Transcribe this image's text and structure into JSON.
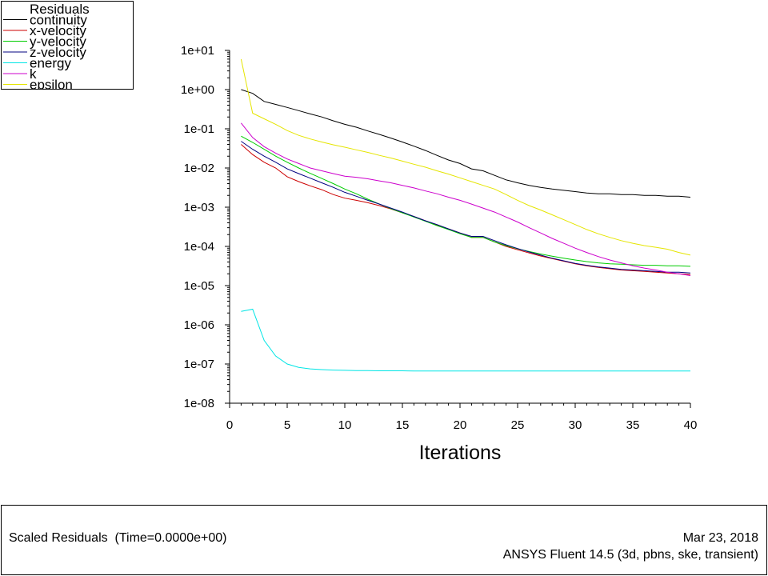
{
  "chart_data": {
    "type": "line",
    "title": "",
    "xlabel": "Iterations",
    "ylabel": "",
    "yscale": "log",
    "xlim": [
      0,
      40
    ],
    "ylim": [
      1e-08,
      10
    ],
    "x_ticks": [
      0,
      5,
      10,
      15,
      20,
      25,
      30,
      35,
      40
    ],
    "y_ticks": [
      "1e-08",
      "1e-07",
      "1e-06",
      "1e-05",
      "1e-04",
      "1e-03",
      "1e-02",
      "1e-01",
      "1e+00",
      "1e+01"
    ],
    "legend": {
      "title": "Residuals",
      "position": "top-left"
    },
    "x": [
      1,
      2,
      3,
      4,
      5,
      6,
      7,
      8,
      9,
      10,
      11,
      12,
      13,
      14,
      15,
      16,
      17,
      18,
      19,
      20,
      21,
      22,
      23,
      24,
      25,
      26,
      27,
      28,
      29,
      30,
      31,
      32,
      33,
      34,
      35,
      36,
      37,
      38,
      39,
      40
    ],
    "series": [
      {
        "name": "continuity",
        "color": "#000000",
        "values": [
          1.0,
          0.8,
          0.5,
          0.42,
          0.35,
          0.29,
          0.24,
          0.2,
          0.16,
          0.13,
          0.11,
          0.088,
          0.072,
          0.058,
          0.046,
          0.036,
          0.028,
          0.021,
          0.016,
          0.013,
          0.0095,
          0.0085,
          0.0065,
          0.005,
          0.0042,
          0.0036,
          0.0032,
          0.0029,
          0.0027,
          0.0025,
          0.0023,
          0.0022,
          0.0022,
          0.0021,
          0.0021,
          0.002,
          0.002,
          0.0019,
          0.0019,
          0.0018
        ]
      },
      {
        "name": "x-velocity",
        "color": "#cc0000",
        "values": [
          0.04,
          0.022,
          0.014,
          0.01,
          0.006,
          0.0045,
          0.0035,
          0.0028,
          0.0021,
          0.0017,
          0.0015,
          0.0013,
          0.0011,
          0.0009,
          0.00072,
          0.00058,
          0.00045,
          0.00035,
          0.00028,
          0.00022,
          0.00017,
          0.00017,
          0.00013,
          0.0001,
          8.2e-05,
          6.8e-05,
          5.7e-05,
          4.9e-05,
          4.2e-05,
          3.6e-05,
          3.2e-05,
          2.9e-05,
          2.7e-05,
          2.5e-05,
          2.4e-05,
          2.3e-05,
          2.2e-05,
          2.1e-05,
          2e-05,
          1.9e-05
        ]
      },
      {
        "name": "y-velocity",
        "color": "#00cc00",
        "values": [
          0.065,
          0.045,
          0.03,
          0.02,
          0.014,
          0.01,
          0.0073,
          0.0054,
          0.004,
          0.0029,
          0.0022,
          0.0016,
          0.0012,
          0.00092,
          0.00072,
          0.00056,
          0.00044,
          0.00034,
          0.00027,
          0.00021,
          0.00017,
          0.00017,
          0.00013,
          0.000105,
          8.7e-05,
          7.4e-05,
          6.4e-05,
          5.6e-05,
          5e-05,
          4.5e-05,
          4.1e-05,
          3.8e-05,
          3.6e-05,
          3.5e-05,
          3.4e-05,
          3.3e-05,
          3.3e-05,
          3.2e-05,
          3.2e-05,
          3.1e-05
        ]
      },
      {
        "name": "z-velocity",
        "color": "#000080",
        "values": [
          0.048,
          0.03,
          0.02,
          0.014,
          0.0095,
          0.0072,
          0.0055,
          0.0042,
          0.0032,
          0.0024,
          0.0019,
          0.0015,
          0.0012,
          0.00095,
          0.00075,
          0.00058,
          0.00045,
          0.00036,
          0.00028,
          0.00022,
          0.00018,
          0.00018,
          0.00014,
          0.00011,
          8.8e-05,
          7.2e-05,
          6e-05,
          5e-05,
          4.3e-05,
          3.7e-05,
          3.3e-05,
          3e-05,
          2.8e-05,
          2.6e-05,
          2.5e-05,
          2.4e-05,
          2.3e-05,
          2.2e-05,
          2.2e-05,
          2.1e-05
        ]
      },
      {
        "name": "energy",
        "color": "#00e5e5",
        "values": [
          2.2e-06,
          2.5e-06,
          4e-07,
          1.6e-07,
          1e-07,
          8.2e-08,
          7.5e-08,
          7.2e-08,
          7e-08,
          6.9e-08,
          6.8e-08,
          6.8e-08,
          6.7e-08,
          6.7e-08,
          6.7e-08,
          6.6e-08,
          6.6e-08,
          6.6e-08,
          6.6e-08,
          6.6e-08,
          6.6e-08,
          6.6e-08,
          6.6e-08,
          6.6e-08,
          6.6e-08,
          6.6e-08,
          6.6e-08,
          6.6e-08,
          6.6e-08,
          6.6e-08,
          6.6e-08,
          6.6e-08,
          6.6e-08,
          6.6e-08,
          6.6e-08,
          6.6e-08,
          6.6e-08,
          6.6e-08,
          6.6e-08,
          6.6e-08
        ]
      },
      {
        "name": "k",
        "color": "#cc00cc",
        "values": [
          0.14,
          0.06,
          0.035,
          0.024,
          0.017,
          0.013,
          0.01,
          0.0085,
          0.0072,
          0.0062,
          0.0058,
          0.0053,
          0.0047,
          0.0042,
          0.0036,
          0.0031,
          0.0026,
          0.0022,
          0.0018,
          0.0015,
          0.0012,
          0.00095,
          0.00075,
          0.00056,
          0.00042,
          0.0003,
          0.00022,
          0.00016,
          0.00012,
          9e-05,
          7e-05,
          5.5e-05,
          4.5e-05,
          3.8e-05,
          3.2e-05,
          2.8e-05,
          2.5e-05,
          2.2e-05,
          2e-05,
          1.8e-05
        ]
      },
      {
        "name": "epsilon",
        "color": "#e5e500",
        "values": [
          6.0,
          0.25,
          0.18,
          0.13,
          0.09,
          0.068,
          0.055,
          0.046,
          0.039,
          0.034,
          0.029,
          0.025,
          0.021,
          0.018,
          0.015,
          0.0125,
          0.0105,
          0.0085,
          0.007,
          0.0056,
          0.0045,
          0.0036,
          0.0029,
          0.0021,
          0.0015,
          0.0011,
          0.00085,
          0.00064,
          0.00048,
          0.00036,
          0.00027,
          0.00021,
          0.00017,
          0.00014,
          0.00012,
          0.000105,
          9.5e-05,
          8.5e-05,
          7e-05,
          6e-05
        ]
      }
    ]
  },
  "footer": {
    "left_text": "Scaled Residuals  (Time=0.0000e+00)",
    "date": "Mar 23, 2018",
    "software": "ANSYS Fluent 14.5 (3d, pbns, ske, transient)"
  }
}
